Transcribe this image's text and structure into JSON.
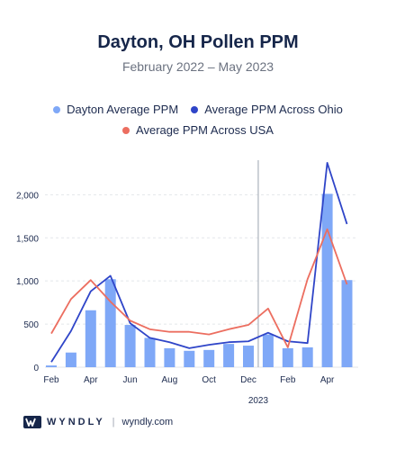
{
  "brand": {
    "name": "WYNDLY",
    "url": "wyndly.com",
    "separator": "|"
  },
  "colors": {
    "bars": "#7fa8f7",
    "ohio": "#2f45c8",
    "usa": "#ec6e60",
    "title": "#16264a"
  },
  "chart_data": {
    "type": "bar",
    "title": "Dayton, OH Pollen PPM",
    "subtitle": "February 2022 – May 2023",
    "xlabel": "",
    "ylabel": "",
    "ylim": [
      0,
      2400
    ],
    "yticks": [
      0,
      500,
      1000,
      1500,
      2000
    ],
    "ytick_labels": [
      "0",
      "500",
      "1,000",
      "1,500",
      "2,000"
    ],
    "x_tick_labels": [
      "Feb",
      "Apr",
      "Jun",
      "Aug",
      "Oct",
      "Dec",
      "Feb",
      "Apr"
    ],
    "year_marker": "2023",
    "grid": true,
    "legend_position": "top",
    "categories": [
      "Feb 2022",
      "Mar 2022",
      "Apr 2022",
      "May 2022",
      "Jun 2022",
      "Jul 2022",
      "Aug 2022",
      "Sep 2022",
      "Oct 2022",
      "Nov 2022",
      "Dec 2022",
      "Jan 2023",
      "Feb 2023",
      "Mar 2023",
      "Apr 2023",
      "May 2023"
    ],
    "series": [
      {
        "name": "Dayton Average PPM",
        "kind": "bar",
        "values": [
          20,
          170,
          660,
          1020,
          490,
          340,
          220,
          190,
          200,
          270,
          250,
          380,
          220,
          230,
          2010,
          1010
        ]
      },
      {
        "name": "Average PPM Across Ohio",
        "kind": "line",
        "values": [
          60,
          420,
          880,
          1060,
          510,
          340,
          290,
          220,
          260,
          290,
          300,
          400,
          300,
          280,
          2370,
          1660
        ]
      },
      {
        "name": "Average PPM Across USA",
        "kind": "line",
        "values": [
          390,
          790,
          1010,
          760,
          540,
          440,
          410,
          410,
          380,
          440,
          490,
          680,
          230,
          1020,
          1600,
          960
        ]
      }
    ]
  }
}
